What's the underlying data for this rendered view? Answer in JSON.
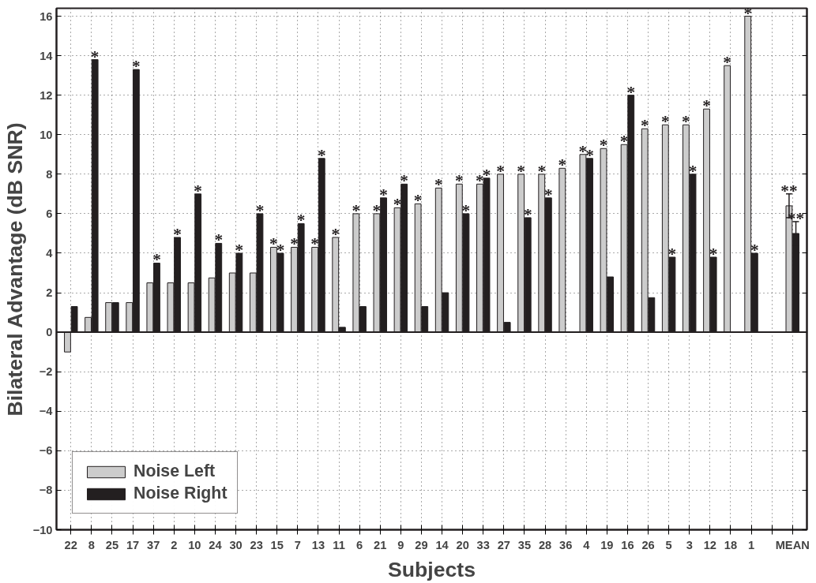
{
  "chart_data": {
    "type": "bar",
    "xlabel": "Subjects",
    "ylabel": "Bilateral Advantage (dB SNR)",
    "categories": [
      "22",
      "8",
      "25",
      "17",
      "37",
      "2",
      "10",
      "24",
      "30",
      "23",
      "15",
      "7",
      "13",
      "11",
      "6",
      "21",
      "9",
      "29",
      "14",
      "20",
      "33",
      "27",
      "35",
      "28",
      "36",
      "4",
      "19",
      "16",
      "26",
      "5",
      "3",
      "12",
      "18",
      "1",
      null,
      "MEAN"
    ],
    "series": [
      {
        "name": "Noise Left",
        "color": "#cccccc",
        "values": [
          -1,
          0.75,
          1.5,
          1.5,
          2.5,
          2.5,
          2.5,
          2.75,
          3,
          3,
          4.3,
          4.3,
          4.3,
          4.8,
          6,
          6,
          6.3,
          6.5,
          7.3,
          7.5,
          7.5,
          8,
          8,
          8,
          8.3,
          9,
          9.3,
          9.5,
          10.3,
          10.5,
          10.5,
          11.3,
          13.5,
          16,
          null,
          6.4
        ],
        "errors": [
          null,
          null,
          null,
          null,
          null,
          null,
          null,
          null,
          null,
          null,
          null,
          null,
          null,
          null,
          null,
          null,
          null,
          null,
          null,
          null,
          null,
          null,
          null,
          null,
          null,
          null,
          null,
          null,
          null,
          null,
          null,
          null,
          null,
          null,
          null,
          0.6
        ],
        "value_labels": [
          null,
          null,
          null,
          null,
          null,
          null,
          null,
          null,
          null,
          null,
          "*",
          "*",
          "*",
          "*",
          "*",
          "*",
          "*",
          "*",
          "*",
          "*",
          "*",
          "*",
          "*",
          "*",
          "*",
          "*",
          "*",
          "*",
          "*",
          "*",
          "*",
          "*",
          "*",
          "*",
          null,
          "**"
        ]
      },
      {
        "name": "Noise Right",
        "color": "#231f20",
        "values": [
          1.3,
          13.8,
          1.5,
          13.3,
          3.5,
          4.8,
          7,
          4.5,
          4,
          6,
          4,
          5.5,
          8.8,
          0.25,
          1.3,
          6.8,
          7.5,
          1.3,
          2,
          6,
          7.8,
          0.5,
          5.8,
          6.8,
          null,
          8.8,
          2.8,
          12,
          1.75,
          3.8,
          8,
          3.8,
          null,
          4,
          null,
          5
        ],
        "errors": [
          null,
          null,
          null,
          null,
          null,
          null,
          null,
          null,
          null,
          null,
          null,
          null,
          null,
          null,
          null,
          null,
          null,
          null,
          null,
          null,
          null,
          null,
          null,
          null,
          null,
          null,
          null,
          null,
          null,
          null,
          null,
          null,
          null,
          null,
          null,
          0.6
        ],
        "value_labels": [
          null,
          "*",
          null,
          "*",
          "*",
          "*",
          "*",
          "*",
          "*",
          "*",
          "*",
          "*",
          "*",
          null,
          null,
          "*",
          "*",
          null,
          null,
          "*",
          "*",
          null,
          "*",
          "*",
          null,
          "*",
          null,
          "*",
          null,
          "*",
          "*",
          "*",
          null,
          "*",
          null,
          "**"
        ]
      }
    ],
    "ylim": [
      -10,
      16.4
    ],
    "yticks": [
      -10,
      -8,
      -6,
      -4,
      -2,
      0,
      2,
      4,
      6,
      8,
      10,
      12,
      14,
      16
    ],
    "grid": true,
    "legend": "bottom left"
  }
}
